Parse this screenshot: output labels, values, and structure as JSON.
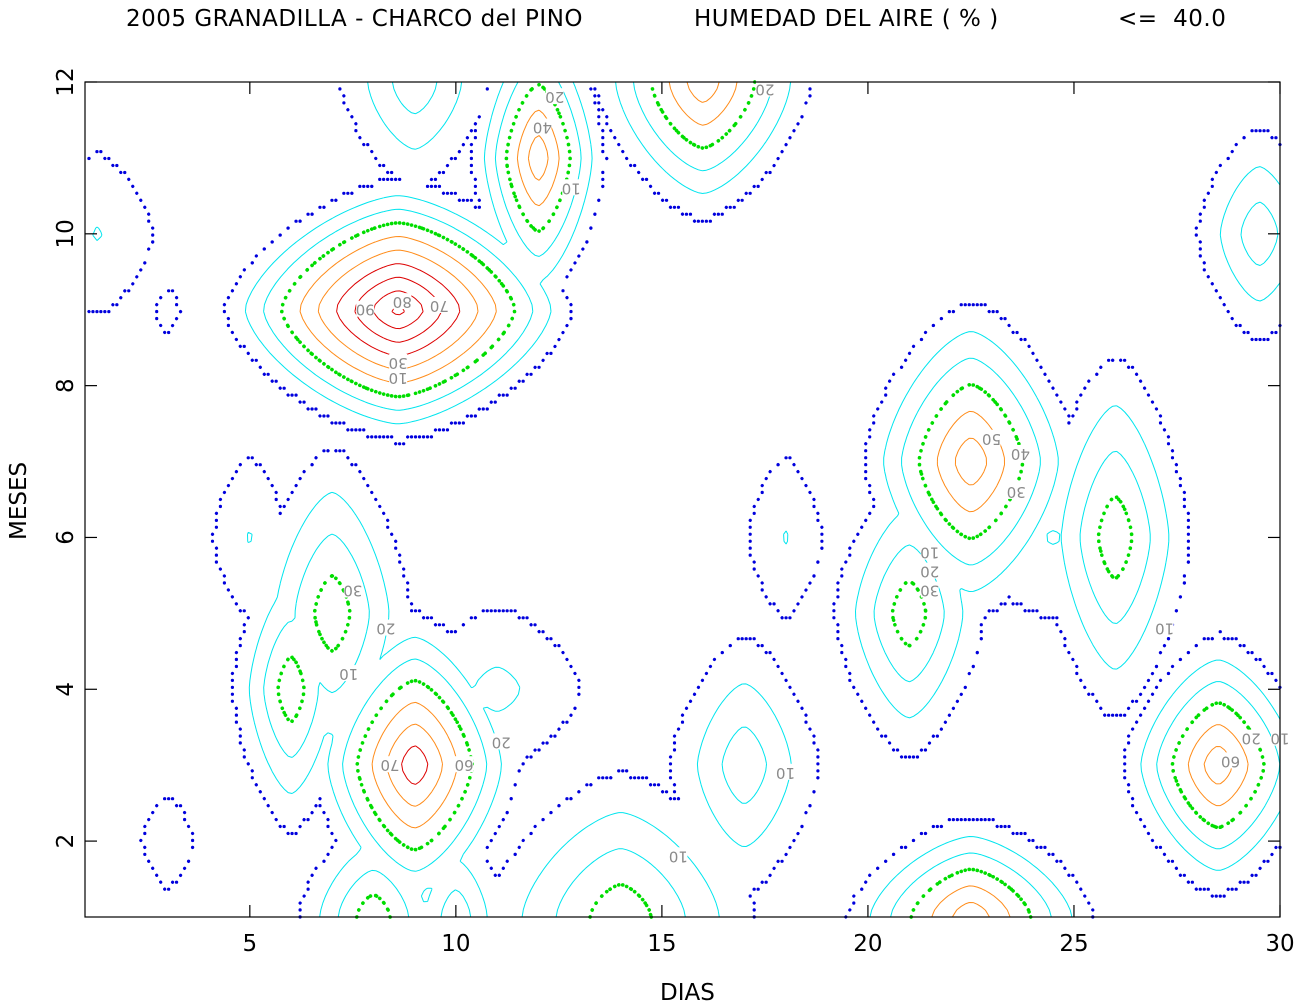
{
  "header": {
    "title": "2005 GRANADILLA - CHARCO del PINO",
    "variable": "HUMEDAD DEL AIRE ( % )",
    "threshold": "<=  40.0"
  },
  "chart_data": {
    "type": "contour",
    "title": "2005 GRANADILLA - CHARCO del PINO",
    "subtitle": "HUMEDAD DEL AIRE ( % )",
    "threshold_label": "<=  40.0",
    "xlabel": "DIAS",
    "ylabel": "MESES",
    "xlim": [
      1,
      30
    ],
    "ylim": [
      1,
      12
    ],
    "xticks": [
      5,
      10,
      15,
      20,
      25,
      30
    ],
    "yticks": [
      2,
      4,
      6,
      8,
      10,
      12
    ],
    "grid": false,
    "contour_levels": [
      0,
      10,
      20,
      30,
      40,
      50,
      60,
      70,
      80,
      90
    ],
    "level_colors": [
      {
        "min": 0,
        "max": 0,
        "color": "#0000dd",
        "style": "dotted"
      },
      {
        "min": 1,
        "max": 20,
        "color": "#00e5ee",
        "style": "solid"
      },
      {
        "min": 21,
        "max": 30,
        "color": "#00dd00",
        "style": "dotted"
      },
      {
        "min": 31,
        "max": 50,
        "color": "#ff8c1a",
        "style": "solid"
      },
      {
        "min": 51,
        "max": 59,
        "color": "#e0007a",
        "style": "dotted"
      },
      {
        "min": 60,
        "max": 100,
        "color": "#dd0000",
        "style": "solid"
      }
    ],
    "peaks": [
      {
        "x": 8.6,
        "y": 9.0,
        "value": 95,
        "rx": 4.2,
        "ry": 1.7
      },
      {
        "x": 22.5,
        "y": 7.0,
        "value": 60,
        "rx": 2.6,
        "ry": 2.1
      },
      {
        "x": 9.0,
        "y": 3.0,
        "value": 70,
        "rx": 2.5,
        "ry": 2.0
      },
      {
        "x": 28.5,
        "y": 3.0,
        "value": 60,
        "rx": 2.3,
        "ry": 1.7
      },
      {
        "x": 12.0,
        "y": 11.0,
        "value": 60,
        "rx": 1.6,
        "ry": 2.0
      },
      {
        "x": 16.0,
        "y": 12.0,
        "value": 60,
        "rx": 2.6,
        "ry": 1.8
      },
      {
        "x": 7.0,
        "y": 5.0,
        "value": 40,
        "rx": 1.9,
        "ry": 2.2
      },
      {
        "x": 6.0,
        "y": 4.0,
        "value": 40,
        "rx": 1.4,
        "ry": 1.9
      },
      {
        "x": 21.0,
        "y": 5.0,
        "value": 40,
        "rx": 1.8,
        "ry": 1.9
      },
      {
        "x": 26.0,
        "y": 6.0,
        "value": 40,
        "rx": 1.8,
        "ry": 2.4
      },
      {
        "x": 17.0,
        "y": 3.0,
        "value": 30,
        "rx": 1.8,
        "ry": 1.7
      },
      {
        "x": 29.5,
        "y": 10.0,
        "value": 30,
        "rx": 1.5,
        "ry": 1.4
      },
      {
        "x": 9.0,
        "y": 12.0,
        "value": 30,
        "rx": 1.8,
        "ry": 1.4
      },
      {
        "x": 11.0,
        "y": 4.0,
        "value": 15,
        "rx": 2.1,
        "ry": 1.1
      },
      {
        "x": 22.5,
        "y": 1.0,
        "value": 60,
        "rx": 3.0,
        "ry": 1.3
      },
      {
        "x": 14.0,
        "y": 1.0,
        "value": 40,
        "rx": 3.3,
        "ry": 1.9
      },
      {
        "x": 8.0,
        "y": 1.0,
        "value": 40,
        "rx": 1.8,
        "ry": 1.3
      },
      {
        "x": 10.0,
        "y": 1.0,
        "value": 30,
        "rx": 1.2,
        "ry": 1.2
      },
      {
        "x": 24.5,
        "y": 6.0,
        "value": 12,
        "rx": 2.4,
        "ry": 1.1
      },
      {
        "x": 5.0,
        "y": 6.0,
        "value": 12,
        "rx": 0.9,
        "ry": 1.1
      },
      {
        "x": 18.0,
        "y": 6.0,
        "value": 12,
        "rx": 0.9,
        "ry": 1.1
      },
      {
        "x": 1.3,
        "y": 10.0,
        "value": 12,
        "rx": 1.4,
        "ry": 1.1
      },
      {
        "x": 3.0,
        "y": 2.0,
        "value": 5,
        "rx": 0.7,
        "ry": 0.7
      },
      {
        "x": 3.0,
        "y": 9.0,
        "value": 5,
        "rx": 0.3,
        "ry": 0.3
      }
    ],
    "contour_labels": [
      {
        "text": "90",
        "x": 7.8,
        "y": 9.0
      },
      {
        "text": "80",
        "x": 8.7,
        "y": 9.1
      },
      {
        "text": "70",
        "x": 9.6,
        "y": 9.05
      },
      {
        "text": "30",
        "x": 8.6,
        "y": 8.3
      },
      {
        "text": "10",
        "x": 8.6,
        "y": 8.1
      },
      {
        "text": "20",
        "x": 12.4,
        "y": 11.8
      },
      {
        "text": "40",
        "x": 12.1,
        "y": 11.4
      },
      {
        "text": "10",
        "x": 12.8,
        "y": 10.6
      },
      {
        "text": "20",
        "x": 17.5,
        "y": 11.9
      },
      {
        "text": "50",
        "x": 23.0,
        "y": 7.3
      },
      {
        "text": "40",
        "x": 23.7,
        "y": 7.1
      },
      {
        "text": "30",
        "x": 23.6,
        "y": 6.6
      },
      {
        "text": "30",
        "x": 7.5,
        "y": 5.3
      },
      {
        "text": "20",
        "x": 8.3,
        "y": 4.8
      },
      {
        "text": "10",
        "x": 7.4,
        "y": 4.2
      },
      {
        "text": "10",
        "x": 21.5,
        "y": 5.8
      },
      {
        "text": "20",
        "x": 21.5,
        "y": 5.55
      },
      {
        "text": "30",
        "x": 21.5,
        "y": 5.3
      },
      {
        "text": "10",
        "x": 27.2,
        "y": 4.8
      },
      {
        "text": "70",
        "x": 8.4,
        "y": 3.0
      },
      {
        "text": "60",
        "x": 10.2,
        "y": 3.0
      },
      {
        "text": "20",
        "x": 11.1,
        "y": 3.3
      },
      {
        "text": "10",
        "x": 18.0,
        "y": 2.9
      },
      {
        "text": "10",
        "x": 15.4,
        "y": 1.8
      },
      {
        "text": "60",
        "x": 28.8,
        "y": 3.05
      },
      {
        "text": "20",
        "x": 29.3,
        "y": 3.35
      },
      {
        "text": "10",
        "x": 30.0,
        "y": 3.35
      }
    ]
  },
  "colors": {
    "zero_contour": "#0000dd",
    "cyan_contour": "#00e5ee",
    "green_contour": "#00dd00",
    "orange_contour": "#ff8c1a",
    "magenta_contour": "#e0007a",
    "red_contour": "#dd0000",
    "label_gray": "#8a8a8a"
  }
}
